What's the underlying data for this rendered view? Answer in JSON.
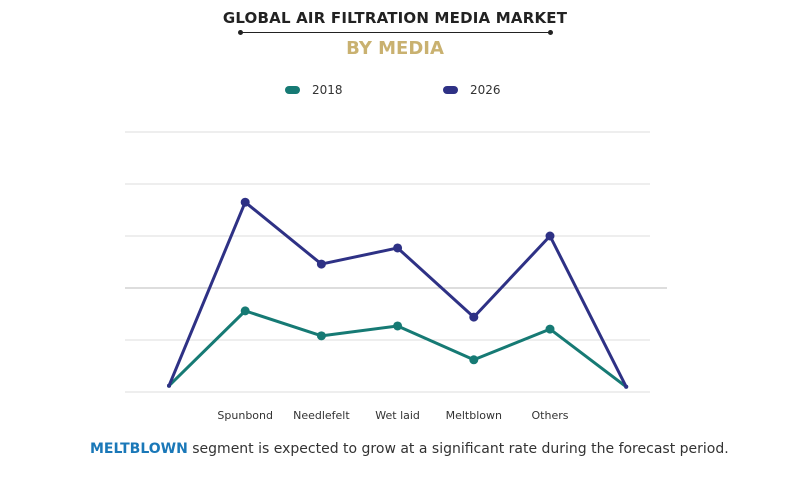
{
  "title": "GLOBAL AIR FILTRATION MEDIA MARKET",
  "subtitle": "BY MEDIA",
  "footnote": {
    "highlight": "MELTBLOWN",
    "text": " segment is expected to grow at a significant rate during the forecast period."
  },
  "chart_data": {
    "type": "line",
    "title": "GLOBAL AIR FILTRATION MEDIA MARKET",
    "subtitle": "BY MEDIA",
    "categories": [
      "",
      "Spunbond",
      "Needlefelt",
      "Wet laid",
      "Meltblown",
      "Others",
      ""
    ],
    "series": [
      {
        "name": "2018",
        "color": "#167a74",
        "values": [
          0.12,
          1.56,
          1.08,
          1.27,
          0.62,
          1.21,
          0.1
        ]
      },
      {
        "name": "2026",
        "color": "#2e3185",
        "values": [
          0.12,
          3.65,
          2.46,
          2.77,
          1.44,
          3.0,
          0.1
        ]
      }
    ],
    "ylim": [
      0,
      5
    ],
    "yticks_labeled": false,
    "grid": true,
    "legend": "top"
  }
}
